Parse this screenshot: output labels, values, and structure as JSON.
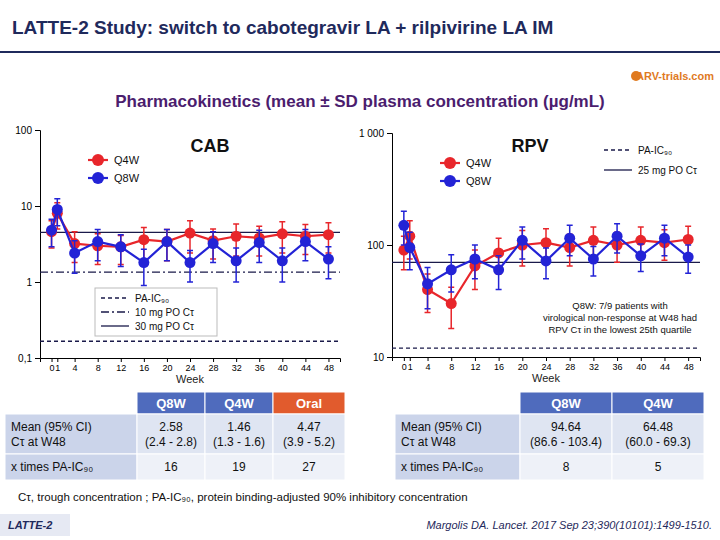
{
  "header": {
    "title": "LATTE-2 Study: switch to cabotegravir LA + rilpivirine LA IM",
    "subtitle": "Pharmacokinetics (mean ± SD plasma concentration (µg/mL)",
    "logo": "ARV-trials.com"
  },
  "chart_data": [
    {
      "type": "line",
      "title": "CAB",
      "x_label": "Week",
      "x": [
        0,
        1,
        4,
        8,
        12,
        16,
        20,
        24,
        28,
        32,
        36,
        40,
        44,
        48
      ],
      "xlim": [
        -2,
        50
      ],
      "xticks": [
        0,
        1,
        4,
        8,
        12,
        16,
        20,
        24,
        28,
        32,
        36,
        40,
        44,
        48
      ],
      "ylim": [
        0.1,
        100
      ],
      "yticks": [
        {
          "value": 0.1,
          "label": "0,1"
        },
        1,
        10,
        100
      ],
      "log": "y",
      "legend": "upper left",
      "series": [
        {
          "name": "Q4W",
          "color": "#e8262b",
          "marker": "circle",
          "values": [
            4.6,
            8.0,
            3.2,
            3.0,
            2.9,
            3.6,
            3.4,
            4.4,
            3.5,
            4.0,
            3.8,
            4.3,
            4.0,
            4.2
          ],
          "errors": [
            1.8,
            3.0,
            1.4,
            1.3,
            1.2,
            1.6,
            1.5,
            2.0,
            1.5,
            1.8,
            1.6,
            1.9,
            1.7,
            1.8
          ]
        },
        {
          "name": "Q8W",
          "color": "#2323d6",
          "marker": "circle",
          "values": [
            4.8,
            9.0,
            2.4,
            3.4,
            2.9,
            1.8,
            3.4,
            1.8,
            3.2,
            1.9,
            3.3,
            1.9,
            3.4,
            2.0
          ],
          "errors": [
            1.9,
            3.5,
            1.1,
            1.5,
            1.3,
            0.9,
            1.5,
            0.8,
            1.4,
            0.9,
            1.5,
            0.9,
            1.5,
            0.9
          ]
        }
      ],
      "reference_lines": [
        {
          "name": "PA-IC₉₀",
          "value": 0.166,
          "line_style": "dashed"
        },
        {
          "name": "10 mg PO Cτ",
          "value": 1.35,
          "line_style": "dashdot"
        },
        {
          "name": "30 mg PO Cτ",
          "value": 4.5,
          "line_style": "solid"
        }
      ]
    },
    {
      "type": "line",
      "title": "RPV",
      "x_label": "Week",
      "x": [
        0,
        1,
        4,
        8,
        12,
        16,
        20,
        24,
        28,
        32,
        36,
        40,
        44,
        48
      ],
      "xlim": [
        -2,
        50
      ],
      "xticks": [
        0,
        1,
        4,
        8,
        12,
        16,
        20,
        24,
        28,
        32,
        36,
        40,
        44,
        48
      ],
      "ylim": [
        10,
        1000
      ],
      "yticks": [
        10,
        100,
        {
          "value": 1000,
          "label": "1 000"
        }
      ],
      "log": "y",
      "legend": "upper left",
      "series": [
        {
          "name": "Q4W",
          "color": "#e8262b",
          "marker": "circle",
          "values": [
            90,
            120,
            40,
            30,
            65,
            85,
            100,
            105,
            95,
            110,
            100,
            110,
            105,
            112
          ],
          "errors": [
            30,
            45,
            15,
            12,
            25,
            30,
            35,
            35,
            30,
            35,
            30,
            35,
            32,
            35
          ]
        },
        {
          "name": "Q8W",
          "color": "#2323d6",
          "marker": "circle",
          "values": [
            150,
            95,
            45,
            60,
            75,
            60,
            110,
            72,
            115,
            75,
            120,
            80,
            115,
            78
          ],
          "errors": [
            50,
            35,
            18,
            22,
            25,
            20,
            35,
            22,
            35,
            22,
            35,
            22,
            35,
            22
          ]
        }
      ],
      "reference_lines": [
        {
          "name": "PA-IC₉₀",
          "value": 12,
          "line_style": "dashed"
        },
        {
          "name": "25 mg PO Cτ",
          "value": 70,
          "line_style": "solid"
        }
      ],
      "annotations": [
        "Q8W: 7/9 patients with",
        "virological non-response at W48 had",
        "RPV Cτ in the lowest 25th quartile"
      ]
    }
  ],
  "tables": [
    {
      "columns": [
        "Q8W",
        "Q4W",
        "Oral"
      ],
      "rows": [
        [
          [
            "Mean (95% CI)",
            "Cτ at W48"
          ],
          [
            "2.58",
            "(2.4 - 2.8)"
          ],
          [
            "1.46",
            "(1.3 - 1.6)"
          ],
          [
            "4.47",
            "(3.9 - 5.2)"
          ]
        ],
        [
          [
            "x times PA-IC₉₀"
          ],
          [
            "16"
          ],
          [
            "19"
          ],
          [
            "27"
          ]
        ]
      ]
    },
    {
      "columns": [
        "Q8W",
        "Q4W"
      ],
      "rows": [
        [
          [
            "Mean (95% CI)",
            "Cτ at W48"
          ],
          [
            "94.64",
            "(86.6 - 103.4)"
          ],
          [
            "64.48",
            "(60.0 - 69.3)"
          ]
        ],
        [
          [
            "x times PA-IC₉₀"
          ],
          [
            "8"
          ],
          [
            "5"
          ]
        ]
      ]
    }
  ],
  "footer": {
    "note": "Cτ, trough concentration ; PA-IC₉₀, protein binding-adjusted 90% inhibitory concentration",
    "badge": "LATTE-2",
    "citation": "Margolis DA. Lancet. 2017 Sep 23;390(10101):1499-1510."
  }
}
